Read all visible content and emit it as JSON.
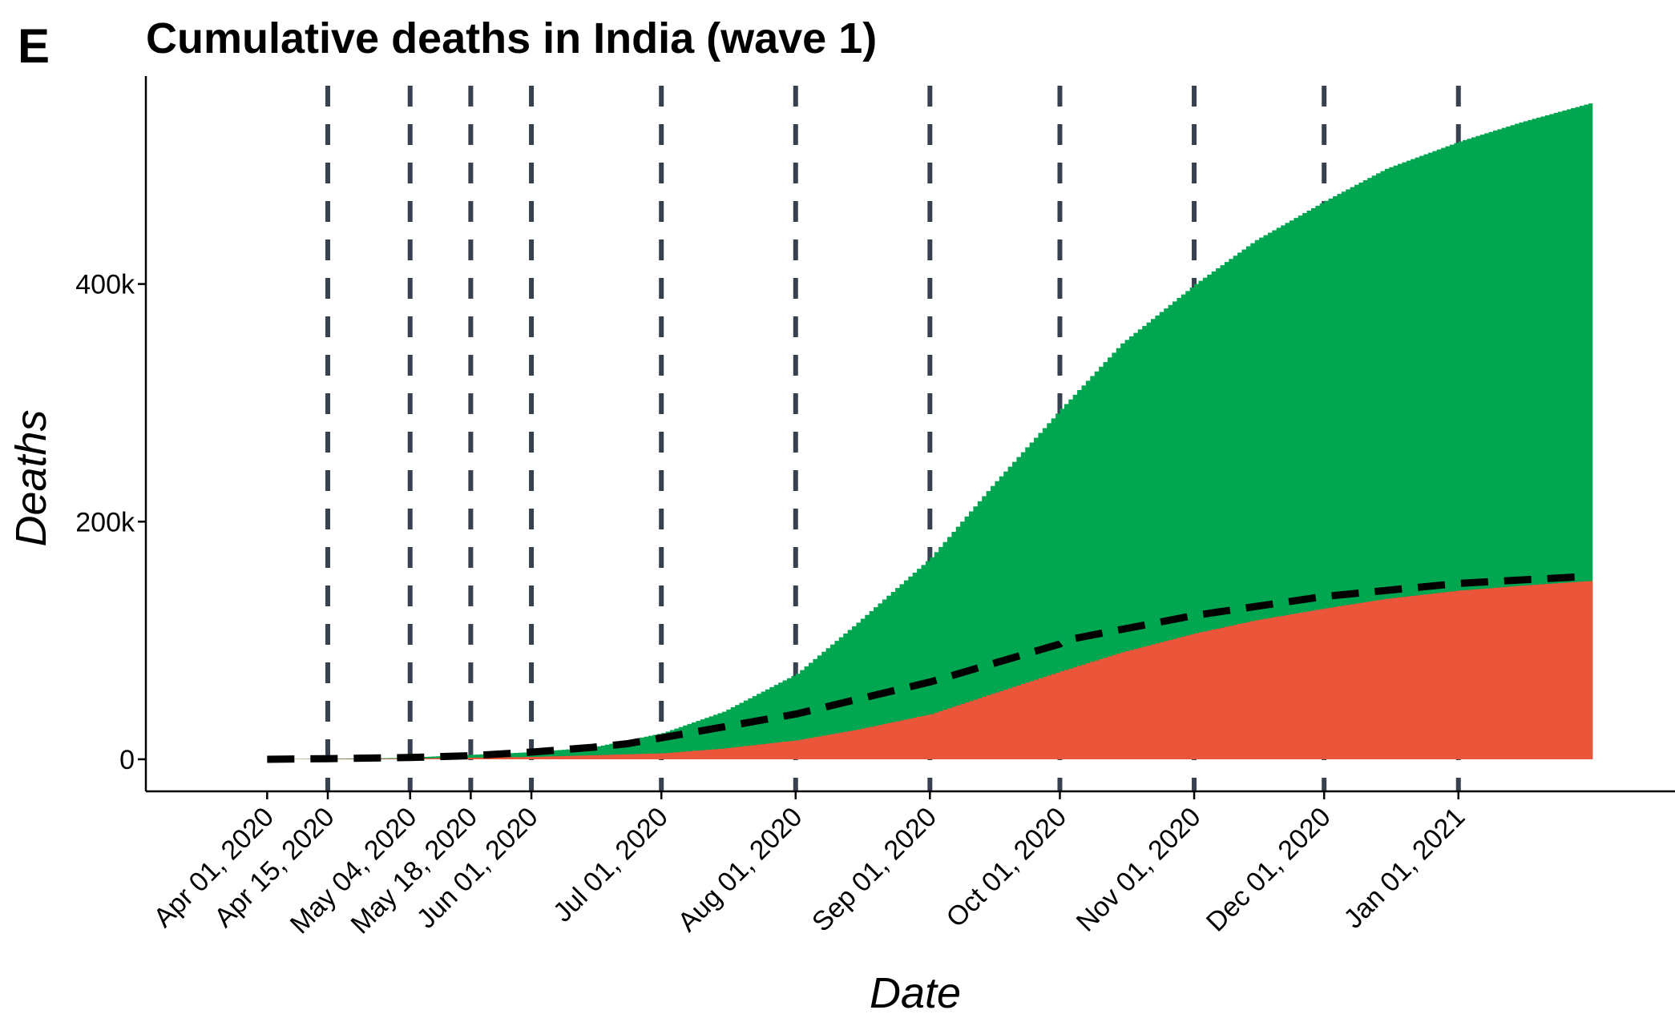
{
  "panel_label": "E",
  "chart_data": {
    "type": "area",
    "title": "Cumulative deaths in India (wave 1)",
    "xlabel": "Date",
    "ylabel": "Deaths",
    "ylim": [
      -27000,
      575000
    ],
    "xlim": [
      "2020-03-04",
      "2021-02-20"
    ],
    "y_ticks": [
      {
        "value": 0,
        "label": "0"
      },
      {
        "value": 200000,
        "label": "200k"
      },
      {
        "value": 400000,
        "label": "400k"
      }
    ],
    "x_ticks": [
      {
        "date": "2020-04-01",
        "label": "Apr 01, 2020"
      },
      {
        "date": "2020-04-15",
        "label": "Apr 15, 2020"
      },
      {
        "date": "2020-05-04",
        "label": "May 04, 2020"
      },
      {
        "date": "2020-05-18",
        "label": "May 18, 2020"
      },
      {
        "date": "2020-06-01",
        "label": "Jun 01, 2020"
      },
      {
        "date": "2020-07-01",
        "label": "Jul 01, 2020"
      },
      {
        "date": "2020-08-01",
        "label": "Aug 01, 2020"
      },
      {
        "date": "2020-09-01",
        "label": "Sep 01, 2020"
      },
      {
        "date": "2020-10-01",
        "label": "Oct 01, 2020"
      },
      {
        "date": "2020-11-01",
        "label": "Nov 01, 2020"
      },
      {
        "date": "2020-12-01",
        "label": "Dec 01, 2020"
      },
      {
        "date": "2021-01-01",
        "label": "Jan 01, 2021"
      }
    ],
    "vlines": [
      "2020-04-15",
      "2020-05-04",
      "2020-05-18",
      "2020-06-01",
      "2020-07-01",
      "2020-08-01",
      "2020-09-01",
      "2020-10-01",
      "2020-11-01",
      "2020-12-01",
      "2021-01-01"
    ],
    "series": [
      {
        "color": "#00A650",
        "x": [
          "2020-04-01",
          "2020-05-01",
          "2020-06-01",
          "2020-06-15",
          "2020-07-01",
          "2020-07-15",
          "2020-08-01",
          "2020-08-15",
          "2020-09-01",
          "2020-09-15",
          "2020-10-01",
          "2020-10-15",
          "2020-11-01",
          "2020-11-15",
          "2020-12-01",
          "2020-12-15",
          "2021-01-01",
          "2021-01-15",
          "2021-01-31"
        ],
        "values": [
          0,
          1000,
          6000,
          10000,
          22000,
          40000,
          72000,
          115000,
          170000,
          230000,
          295000,
          350000,
          400000,
          437000,
          470000,
          497000,
          520000,
          536000,
          552000
        ]
      },
      {
        "color": "#EB553A",
        "x": [
          "2020-04-01",
          "2020-05-01",
          "2020-06-01",
          "2020-07-01",
          "2020-07-15",
          "2020-08-01",
          "2020-08-15",
          "2020-09-01",
          "2020-09-15",
          "2020-10-01",
          "2020-10-15",
          "2020-11-01",
          "2020-11-15",
          "2020-12-01",
          "2020-12-15",
          "2021-01-01",
          "2021-01-15",
          "2021-01-31"
        ],
        "values": [
          0,
          500,
          2000,
          5000,
          9000,
          16000,
          25000,
          38000,
          55000,
          74000,
          90000,
          106000,
          117000,
          127000,
          135000,
          142000,
          146000,
          150000
        ]
      },
      {
        "color": "#000000",
        "line_style": "dashed",
        "x": [
          "2020-04-01",
          "2020-04-15",
          "2020-05-04",
          "2020-05-18",
          "2020-06-01",
          "2020-06-15",
          "2020-06-23",
          "2020-07-01",
          "2020-08-01",
          "2020-09-01",
          "2020-10-01",
          "2020-10-02",
          "2020-11-01",
          "2020-12-01",
          "2021-01-01",
          "2021-01-31"
        ],
        "values": [
          0,
          500,
          1500,
          3000,
          6000,
          10000,
          13000,
          18000,
          38000,
          65000,
          97000,
          100000,
          121000,
          137000,
          148000,
          154000
        ]
      }
    ]
  }
}
